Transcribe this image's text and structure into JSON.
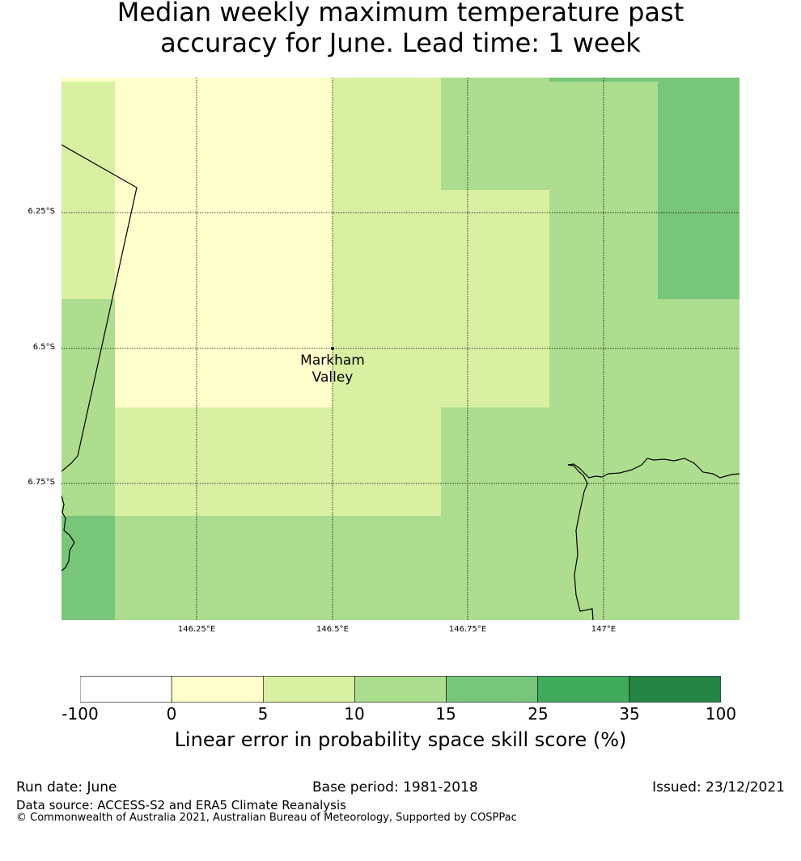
{
  "title_line1": "Median weekly maximum temperature past",
  "title_line2": "accuracy for June. Lead time: 1 week",
  "map": {
    "lat_labels": [
      "6.25°S",
      "6.5°S",
      "6.75°S"
    ],
    "lon_labels": [
      "146.25°E",
      "146.5°E",
      "146.75°E",
      "147°E"
    ],
    "place_name_line1": "Markham",
    "place_name_line2": "Valley",
    "place_coords": {
      "lon": 146.5,
      "lat": -6.5
    }
  },
  "colorbar": {
    "title": "Linear error in probability space skill score (%)",
    "ticks": [
      "-100",
      "0",
      "5",
      "10",
      "15",
      "25",
      "35",
      "100"
    ],
    "colors": [
      "#ffffff",
      "#ffffcc",
      "#d9f0a3",
      "#addd8e",
      "#78c679",
      "#41ab5d",
      "#238443"
    ]
  },
  "footer": {
    "run_date": "Run date: June",
    "base_period": "Base period: 1981-2018",
    "issued": "Issued: 23/12/2021",
    "data_source": "Data source: ACCESS-S2 and ERA5 Climate Reanalysis",
    "copyright": "© Commonwealth of Australia 2021, Australian Bureau of Meteorology, Supported by COSPPac"
  }
}
